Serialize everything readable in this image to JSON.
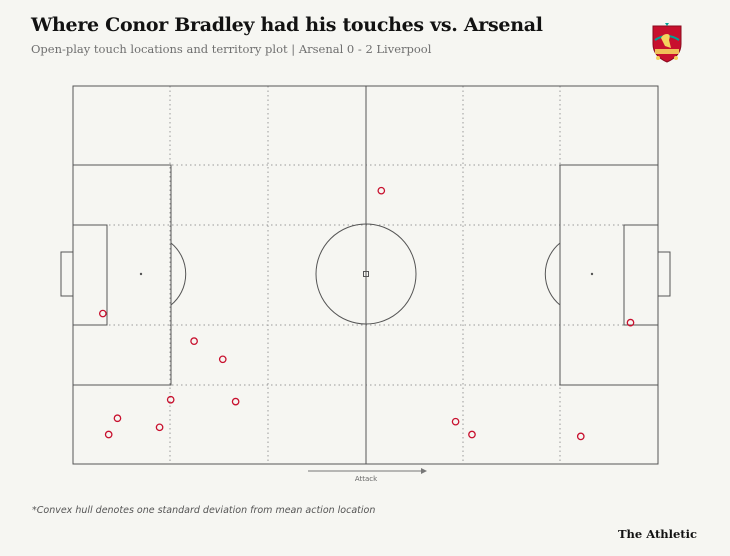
{
  "header": {
    "title": "Where Conor Bradley had his touches vs. Arsenal",
    "subtitle": "Open-play touch locations and territory plot |  Arsenal 0 - 2 Liverpool",
    "crest_text": "LIVERPOOL FOOTBALL CLUB"
  },
  "pitch": {
    "direction_label": "Attack",
    "line_color": "#555555",
    "zone_line_color": "#9a9a9a"
  },
  "footer": {
    "note": "*Convex hull denotes one standard deviation from mean action location",
    "brand": "The Athletic"
  },
  "colors": {
    "touch": "#c8102e",
    "crest": "#c8102e",
    "crest_accent": "#00a398",
    "background": "#f6f6f2"
  },
  "chart_data": {
    "type": "scatter",
    "xlabel": "Attack",
    "xlim": [
      0,
      100
    ],
    "ylim": [
      0,
      100
    ],
    "grid": false,
    "series": [
      {
        "values": [
          {
            "x": 52.7,
            "y": 27.7
          },
          {
            "x": 5.1,
            "y": 60.2
          },
          {
            "x": 20.7,
            "y": 67.5
          },
          {
            "x": 25.6,
            "y": 72.3
          },
          {
            "x": 16.7,
            "y": 83.0
          },
          {
            "x": 27.8,
            "y": 83.5
          },
          {
            "x": 7.6,
            "y": 87.9
          },
          {
            "x": 14.8,
            "y": 90.3
          },
          {
            "x": 6.1,
            "y": 92.2
          },
          {
            "x": 65.4,
            "y": 88.8
          },
          {
            "x": 68.2,
            "y": 92.2
          },
          {
            "x": 86.8,
            "y": 92.7
          },
          {
            "x": 95.3,
            "y": 62.6
          }
        ]
      }
    ]
  }
}
